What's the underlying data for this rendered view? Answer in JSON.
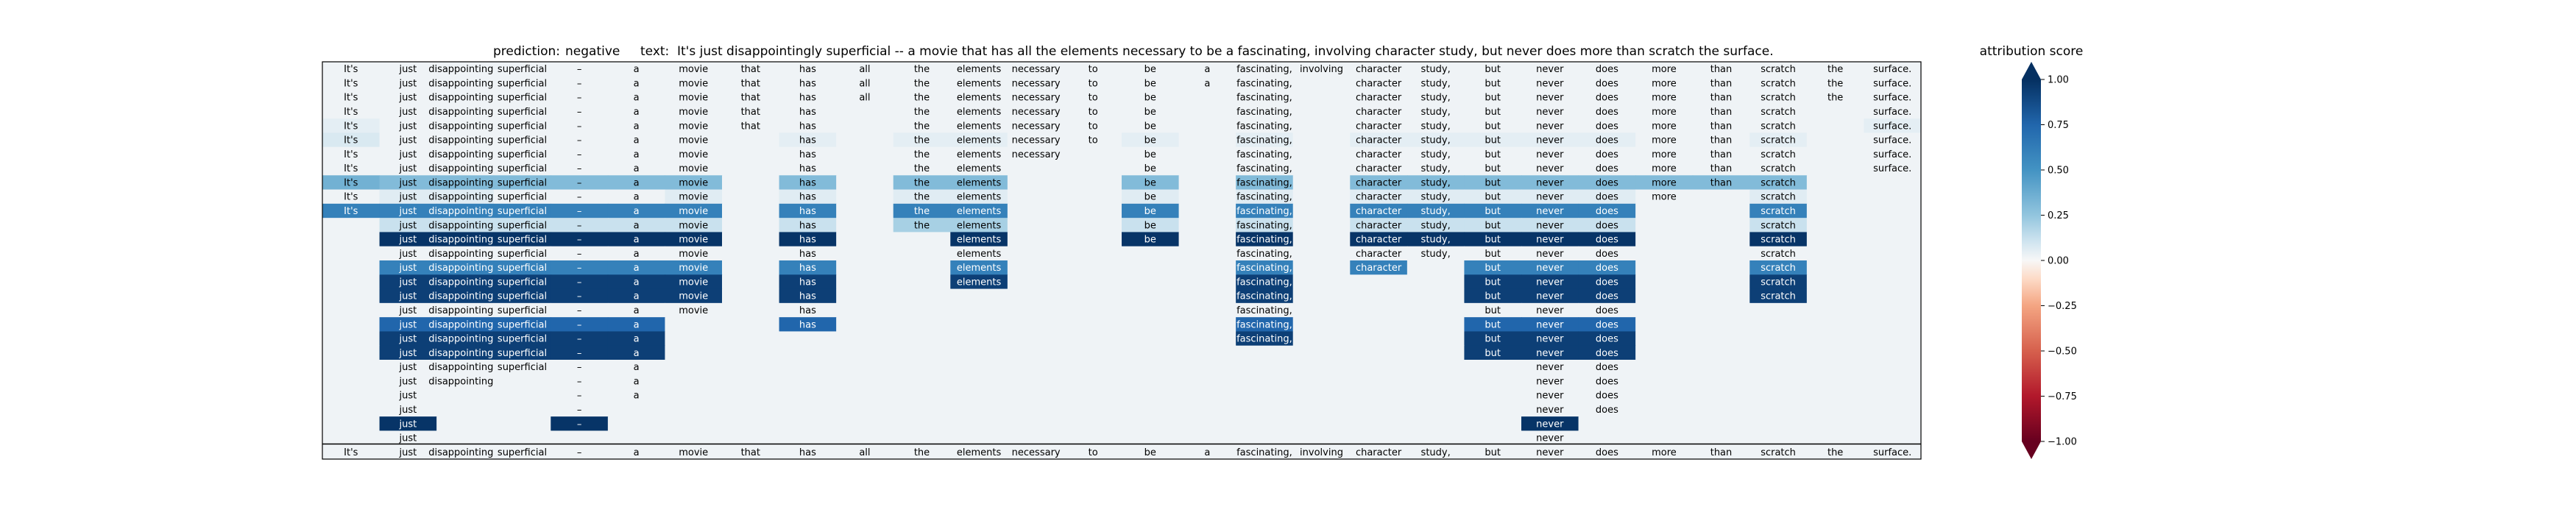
{
  "chart_data": {
    "type": "heatmap",
    "title_prediction_label": "prediction:",
    "title_prediction_value": "negative",
    "title_text_label": "text:",
    "title_text_value": "It's just disappointingly superficial -- a movie that has all the elements necessary to be a fascinating, involving character study, but never does more than scratch the surface.",
    "tokens": [
      "It's",
      "just",
      "disappointingly",
      "superficial",
      "--",
      "a",
      "movie",
      "that",
      "has",
      "all",
      "the",
      "elements",
      "necessary",
      "to",
      "be",
      "a",
      "fascinating,",
      "involving",
      "character",
      "study,",
      "but",
      "never",
      "does",
      "more",
      "than",
      "scratch",
      "the",
      "surface."
    ],
    "rows": [
      {
        "present": [
          0,
          1,
          2,
          3,
          4,
          5,
          6,
          7,
          8,
          9,
          10,
          11,
          12,
          13,
          14,
          15,
          16,
          17,
          18,
          19,
          20,
          21,
          22,
          23,
          24,
          25,
          26,
          27
        ],
        "scores": {}
      },
      {
        "present": [
          0,
          1,
          2,
          3,
          4,
          5,
          6,
          7,
          8,
          9,
          10,
          11,
          12,
          13,
          14,
          15,
          16,
          18,
          19,
          20,
          21,
          22,
          23,
          24,
          25,
          26,
          27
        ],
        "scores": {}
      },
      {
        "present": [
          0,
          1,
          2,
          3,
          4,
          5,
          6,
          7,
          8,
          9,
          10,
          11,
          12,
          13,
          14,
          16,
          18,
          19,
          20,
          21,
          22,
          23,
          24,
          25,
          26,
          27
        ],
        "scores": {}
      },
      {
        "present": [
          0,
          1,
          2,
          3,
          4,
          5,
          6,
          7,
          8,
          10,
          11,
          12,
          13,
          14,
          16,
          18,
          19,
          20,
          21,
          22,
          23,
          24,
          25,
          27
        ],
        "scores": {}
      },
      {
        "present": [
          0,
          1,
          2,
          3,
          4,
          5,
          6,
          7,
          8,
          10,
          11,
          12,
          13,
          14,
          16,
          18,
          19,
          20,
          21,
          22,
          23,
          24,
          25,
          27
        ],
        "scores": {
          "0": 0.05,
          "27": 0.05
        }
      },
      {
        "present": [
          0,
          1,
          2,
          3,
          4,
          5,
          6,
          8,
          10,
          11,
          12,
          13,
          14,
          16,
          18,
          19,
          20,
          21,
          22,
          23,
          24,
          25,
          27
        ],
        "scores": {
          "0": 0.08,
          "8": 0.05,
          "10": 0.05,
          "11": 0.05,
          "14": 0.05,
          "16": 0.05,
          "18": 0.05,
          "19": 0.05,
          "20": 0.05,
          "21": 0.05,
          "22": 0.05,
          "25": 0.05
        }
      },
      {
        "present": [
          0,
          1,
          2,
          3,
          4,
          5,
          6,
          8,
          10,
          11,
          12,
          14,
          16,
          18,
          19,
          20,
          21,
          22,
          23,
          24,
          25,
          27
        ],
        "scores": {}
      },
      {
        "present": [
          0,
          1,
          2,
          3,
          4,
          5,
          6,
          8,
          10,
          11,
          14,
          16,
          18,
          19,
          20,
          21,
          22,
          23,
          24,
          25,
          27
        ],
        "scores": {}
      },
      {
        "present": [
          0,
          1,
          2,
          3,
          4,
          5,
          6,
          8,
          10,
          11,
          14,
          16,
          18,
          19,
          20,
          21,
          22,
          23,
          24,
          25
        ],
        "scores": {
          "0": 0.35,
          "1": 0.3,
          "2": 0.3,
          "3": 0.3,
          "4": 0.3,
          "5": 0.3,
          "6": 0.3,
          "8": 0.3,
          "10": 0.3,
          "11": 0.3,
          "14": 0.3,
          "16": 0.3,
          "18": 0.3,
          "19": 0.3,
          "20": 0.3,
          "21": 0.3,
          "22": 0.3,
          "23": 0.3,
          "24": 0.3,
          "25": 0.3
        }
      },
      {
        "present": [
          0,
          1,
          2,
          3,
          4,
          5,
          6,
          8,
          10,
          11,
          14,
          16,
          18,
          19,
          20,
          21,
          22,
          23,
          25
        ],
        "scores": {
          "1": 0.06,
          "2": 0.06,
          "6": 0.06,
          "8": 0.06,
          "10": 0.06,
          "11": 0.06,
          "14": 0.06,
          "16": 0.06,
          "18": 0.06,
          "19": 0.06,
          "20": 0.06,
          "21": 0.06,
          "22": 0.06,
          "25": 0.06
        }
      },
      {
        "present": [
          0,
          1,
          2,
          3,
          4,
          5,
          6,
          8,
          10,
          11,
          14,
          16,
          18,
          19,
          20,
          21,
          22,
          25
        ],
        "scores": {
          "0": 0.6,
          "1": 0.6,
          "2": 0.6,
          "3": 0.6,
          "4": 0.6,
          "5": 0.6,
          "6": 0.6,
          "8": 0.6,
          "10": 0.6,
          "11": 0.6,
          "14": 0.6,
          "16": 0.6,
          "18": 0.6,
          "19": 0.6,
          "20": 0.6,
          "21": 0.6,
          "22": 0.6,
          "25": 0.6
        }
      },
      {
        "present": [
          1,
          2,
          3,
          4,
          5,
          6,
          8,
          10,
          11,
          14,
          16,
          18,
          19,
          20,
          21,
          22,
          25
        ],
        "scores": {
          "1": 0.12,
          "2": 0.12,
          "3": 0.12,
          "4": 0.12,
          "5": 0.12,
          "6": 0.12,
          "8": 0.12,
          "10": 0.2,
          "11": 0.2,
          "14": 0.12,
          "16": 0.12,
          "18": 0.12,
          "19": 0.12,
          "20": 0.12,
          "21": 0.12,
          "22": 0.12,
          "25": 0.12
        }
      },
      {
        "present": [
          1,
          2,
          3,
          4,
          5,
          6,
          8,
          11,
          14,
          16,
          18,
          19,
          20,
          21,
          22,
          25
        ],
        "scores": {
          "1": 0.98,
          "2": 0.98,
          "3": 0.98,
          "4": 0.98,
          "5": 0.98,
          "6": 0.98,
          "8": 0.98,
          "11": 0.98,
          "14": 0.98,
          "16": 0.98,
          "18": 0.98,
          "19": 0.98,
          "20": 0.98,
          "21": 0.98,
          "22": 0.98,
          "25": 0.98
        }
      },
      {
        "present": [
          1,
          2,
          3,
          4,
          5,
          6,
          8,
          11,
          16,
          18,
          19,
          20,
          21,
          22,
          25
        ],
        "scores": {}
      },
      {
        "present": [
          1,
          2,
          3,
          4,
          5,
          6,
          8,
          11,
          16,
          18,
          20,
          21,
          22,
          25
        ],
        "scores": {
          "1": 0.6,
          "2": 0.6,
          "3": 0.6,
          "4": 0.6,
          "5": 0.6,
          "6": 0.6,
          "8": 0.6,
          "11": 0.6,
          "16": 0.6,
          "18": 0.6,
          "20": 0.6,
          "21": 0.6,
          "22": 0.6,
          "25": 0.6
        }
      },
      {
        "present": [
          1,
          2,
          3,
          4,
          5,
          6,
          8,
          11,
          16,
          20,
          21,
          22,
          25
        ],
        "scores": {
          "1": 0.93,
          "2": 0.93,
          "3": 0.93,
          "4": 0.93,
          "5": 0.93,
          "6": 0.93,
          "8": 0.93,
          "11": 0.93,
          "16": 0.93,
          "20": 0.93,
          "21": 0.93,
          "22": 0.93,
          "25": 0.93
        }
      },
      {
        "present": [
          1,
          2,
          3,
          4,
          5,
          6,
          8,
          16,
          20,
          21,
          22,
          25
        ],
        "scores": {
          "1": 0.93,
          "2": 0.93,
          "3": 0.93,
          "4": 0.93,
          "5": 0.93,
          "6": 0.93,
          "8": 0.93,
          "16": 0.93,
          "20": 0.93,
          "21": 0.93,
          "22": 0.93,
          "25": 0.93
        }
      },
      {
        "present": [
          1,
          2,
          3,
          4,
          5,
          6,
          8,
          16,
          20,
          21,
          22
        ],
        "scores": {}
      },
      {
        "present": [
          1,
          2,
          3,
          4,
          5,
          8,
          16,
          20,
          21,
          22
        ],
        "scores": {
          "1": 0.75,
          "2": 0.75,
          "3": 0.75,
          "4": 0.75,
          "5": 0.75,
          "8": 0.75,
          "16": 0.75,
          "20": 0.75,
          "21": 0.75,
          "22": 0.75
        }
      },
      {
        "present": [
          1,
          2,
          3,
          4,
          5,
          16,
          20,
          21,
          22
        ],
        "scores": {
          "1": 0.93,
          "2": 0.93,
          "3": 0.93,
          "4": 0.93,
          "5": 0.93,
          "16": 0.93,
          "20": 0.93,
          "21": 0.93,
          "22": 0.93
        }
      },
      {
        "present": [
          1,
          2,
          3,
          4,
          5,
          20,
          21,
          22
        ],
        "scores": {
          "1": 0.93,
          "2": 0.93,
          "3": 0.93,
          "4": 0.93,
          "5": 0.93,
          "20": 0.93,
          "21": 0.93,
          "22": 0.93
        }
      },
      {
        "present": [
          1,
          2,
          3,
          4,
          5,
          21,
          22
        ],
        "scores": {}
      },
      {
        "present": [
          1,
          2,
          4,
          5,
          21,
          22
        ],
        "scores": {}
      },
      {
        "present": [
          1,
          4,
          5,
          21,
          22
        ],
        "scores": {}
      },
      {
        "present": [
          1,
          4,
          21,
          22
        ],
        "scores": {}
      },
      {
        "present": [
          1,
          4,
          21
        ],
        "scores": {
          "1": 0.98,
          "4": 0.98,
          "21": 0.98
        }
      },
      {
        "present": [
          1,
          21
        ],
        "scores": {}
      },
      {
        "present": [
          0,
          1,
          2,
          3,
          4,
          5,
          6,
          7,
          8,
          9,
          10,
          11,
          12,
          13,
          14,
          15,
          16,
          17,
          18,
          19,
          20,
          21,
          22,
          23,
          24,
          25,
          26,
          27
        ],
        "scores": {}
      }
    ],
    "colorbar": {
      "label": "attribution score",
      "ticks": [
        "1.00",
        "0.75",
        "0.50",
        "0.25",
        "0.00",
        "−0.25",
        "−0.50",
        "−0.75",
        "−1.00"
      ],
      "tick_values": [
        1,
        0.75,
        0.5,
        0.25,
        0,
        -0.25,
        -0.5,
        -0.75,
        -1
      ],
      "range": [
        -1,
        1
      ],
      "colormap": "RdBu",
      "extend": "both"
    },
    "baseline_fill": 0.02,
    "grid": false
  }
}
